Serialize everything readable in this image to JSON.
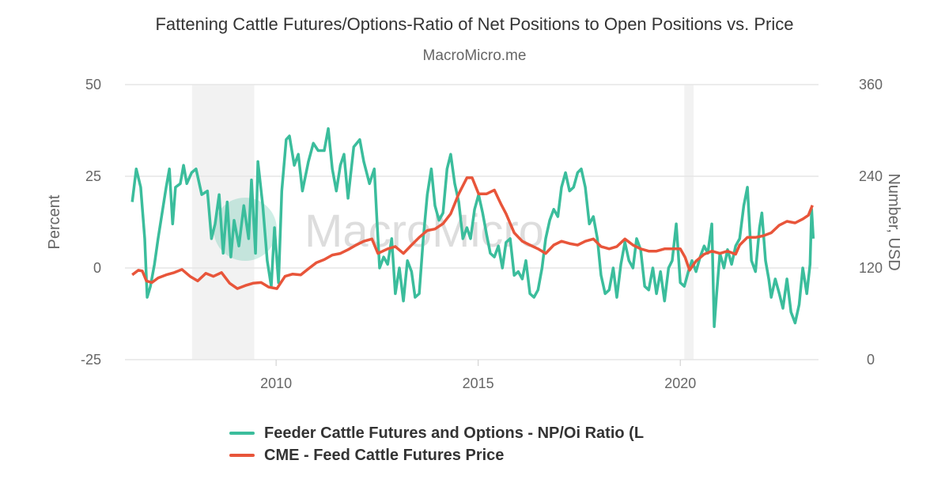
{
  "title": "Fattening Cattle Futures/Options-Ratio of Net Positions to Open Positions vs. Price",
  "subtitle": "MacroMicro.me",
  "watermark": "MacroMicro",
  "chart_data": {
    "type": "line",
    "title": "Fattening Cattle Futures/Options-Ratio of Net Positions to Open Positions vs. Price",
    "subtitle": "MacroMicro.me",
    "xlim": [
      2006.26,
      2023.42
    ],
    "x_ticks": [
      "2010",
      "2015",
      "2020"
    ],
    "x_tick_values": [
      2010,
      2015,
      2020
    ],
    "y_left": {
      "label": "Percent",
      "lim": [
        -25,
        50
      ],
      "ticks": [
        "-25",
        "0",
        "25",
        "50"
      ],
      "tick_values": [
        -25,
        0,
        25,
        50
      ]
    },
    "y_right": {
      "label": "Number, USD",
      "lim": [
        0,
        360
      ],
      "ticks": [
        "0",
        "120",
        "240",
        "360"
      ],
      "tick_values": [
        0,
        120,
        240,
        360
      ]
    },
    "grid": true,
    "legend_position": "bottom",
    "shaded_periods": [
      [
        2007.92,
        2009.46
      ],
      [
        2020.1,
        2020.33
      ]
    ],
    "series": [
      {
        "name": "Feeder Cattle Futures and Options - NP/Oi Ratio (L",
        "axis": "left",
        "color": "#3bbd9c",
        "points": [
          [
            2006.44,
            18
          ],
          [
            2006.54,
            27
          ],
          [
            2006.65,
            22
          ],
          [
            2006.75,
            8
          ],
          [
            2006.81,
            -8
          ],
          [
            2006.89,
            -5
          ],
          [
            2006.99,
            1
          ],
          [
            2007.08,
            8
          ],
          [
            2007.18,
            15
          ],
          [
            2007.28,
            22
          ],
          [
            2007.36,
            27
          ],
          [
            2007.44,
            12
          ],
          [
            2007.51,
            22
          ],
          [
            2007.63,
            23
          ],
          [
            2007.71,
            28
          ],
          [
            2007.79,
            23
          ],
          [
            2007.91,
            26
          ],
          [
            2008.02,
            27
          ],
          [
            2008.16,
            20
          ],
          [
            2008.3,
            21
          ],
          [
            2008.4,
            8
          ],
          [
            2008.49,
            12
          ],
          [
            2008.59,
            20
          ],
          [
            2008.69,
            4
          ],
          [
            2008.79,
            18
          ],
          [
            2008.88,
            3
          ],
          [
            2008.96,
            13
          ],
          [
            2009.08,
            6
          ],
          [
            2009.2,
            17
          ],
          [
            2009.32,
            8
          ],
          [
            2009.39,
            24
          ],
          [
            2009.49,
            4
          ],
          [
            2009.55,
            29
          ],
          [
            2009.67,
            17
          ],
          [
            2009.78,
            2
          ],
          [
            2009.88,
            -5
          ],
          [
            2009.96,
            11
          ],
          [
            2010.06,
            -4
          ],
          [
            2010.14,
            21
          ],
          [
            2010.25,
            35
          ],
          [
            2010.33,
            36
          ],
          [
            2010.45,
            28
          ],
          [
            2010.55,
            31
          ],
          [
            2010.65,
            21
          ],
          [
            2010.8,
            29
          ],
          [
            2010.92,
            34
          ],
          [
            2011.04,
            32
          ],
          [
            2011.19,
            32
          ],
          [
            2011.29,
            38
          ],
          [
            2011.39,
            27
          ],
          [
            2011.49,
            21
          ],
          [
            2011.59,
            28
          ],
          [
            2011.68,
            31
          ],
          [
            2011.78,
            19
          ],
          [
            2011.92,
            33
          ],
          [
            2012.07,
            35
          ],
          [
            2012.17,
            29
          ],
          [
            2012.31,
            23
          ],
          [
            2012.43,
            27
          ],
          [
            2012.49,
            14
          ],
          [
            2012.56,
            0
          ],
          [
            2012.66,
            3
          ],
          [
            2012.76,
            1
          ],
          [
            2012.86,
            8
          ],
          [
            2012.95,
            -7
          ],
          [
            2013.05,
            0
          ],
          [
            2013.15,
            -9
          ],
          [
            2013.25,
            2
          ],
          [
            2013.35,
            -1
          ],
          [
            2013.44,
            -8
          ],
          [
            2013.54,
            -7
          ],
          [
            2013.64,
            8
          ],
          [
            2013.74,
            20
          ],
          [
            2013.84,
            27
          ],
          [
            2013.93,
            17
          ],
          [
            2014.03,
            13
          ],
          [
            2014.13,
            15
          ],
          [
            2014.23,
            27
          ],
          [
            2014.32,
            31
          ],
          [
            2014.42,
            23
          ],
          [
            2014.52,
            18
          ],
          [
            2014.62,
            8
          ],
          [
            2014.72,
            11
          ],
          [
            2014.81,
            8
          ],
          [
            2014.91,
            16
          ],
          [
            2015.01,
            20
          ],
          [
            2015.11,
            15
          ],
          [
            2015.21,
            9
          ],
          [
            2015.3,
            4
          ],
          [
            2015.4,
            3
          ],
          [
            2015.5,
            6
          ],
          [
            2015.6,
            0
          ],
          [
            2015.69,
            7
          ],
          [
            2015.79,
            8
          ],
          [
            2015.89,
            -2
          ],
          [
            2015.99,
            -1
          ],
          [
            2016.09,
            -3
          ],
          [
            2016.18,
            2
          ],
          [
            2016.28,
            -7
          ],
          [
            2016.38,
            -8
          ],
          [
            2016.48,
            -6
          ],
          [
            2016.58,
            0
          ],
          [
            2016.67,
            8
          ],
          [
            2016.77,
            13
          ],
          [
            2016.87,
            16
          ],
          [
            2016.97,
            14
          ],
          [
            2017.06,
            22
          ],
          [
            2017.16,
            26
          ],
          [
            2017.26,
            21
          ],
          [
            2017.36,
            22
          ],
          [
            2017.46,
            26
          ],
          [
            2017.55,
            27
          ],
          [
            2017.65,
            22
          ],
          [
            2017.75,
            12
          ],
          [
            2017.85,
            14
          ],
          [
            2017.95,
            8
          ],
          [
            2018.04,
            -2
          ],
          [
            2018.14,
            -7
          ],
          [
            2018.24,
            -6
          ],
          [
            2018.34,
            0
          ],
          [
            2018.43,
            -8
          ],
          [
            2018.53,
            1
          ],
          [
            2018.63,
            7
          ],
          [
            2018.73,
            2
          ],
          [
            2018.83,
            0
          ],
          [
            2018.92,
            8
          ],
          [
            2019.02,
            5
          ],
          [
            2019.12,
            -5
          ],
          [
            2019.22,
            -6
          ],
          [
            2019.32,
            0
          ],
          [
            2019.41,
            -7
          ],
          [
            2019.51,
            -1
          ],
          [
            2019.61,
            -9
          ],
          [
            2019.71,
            0
          ],
          [
            2019.8,
            2
          ],
          [
            2019.9,
            12
          ],
          [
            2020.0,
            -4
          ],
          [
            2020.1,
            -5
          ],
          [
            2020.2,
            -1
          ],
          [
            2020.29,
            2
          ],
          [
            2020.39,
            -1
          ],
          [
            2020.49,
            3
          ],
          [
            2020.59,
            6
          ],
          [
            2020.68,
            4
          ],
          [
            2020.78,
            12
          ],
          [
            2020.84,
            -16
          ],
          [
            2020.9,
            -7
          ],
          [
            2020.98,
            4
          ],
          [
            2021.08,
            0
          ],
          [
            2021.17,
            5
          ],
          [
            2021.27,
            1
          ],
          [
            2021.37,
            6
          ],
          [
            2021.47,
            8
          ],
          [
            2021.57,
            17
          ],
          [
            2021.66,
            22
          ],
          [
            2021.76,
            2
          ],
          [
            2021.86,
            -1
          ],
          [
            2021.96,
            11
          ],
          [
            2022.02,
            15
          ],
          [
            2022.11,
            2
          ],
          [
            2022.19,
            -3
          ],
          [
            2022.25,
            -8
          ],
          [
            2022.35,
            -3
          ],
          [
            2022.45,
            -7
          ],
          [
            2022.54,
            -11
          ],
          [
            2022.64,
            -3
          ],
          [
            2022.74,
            -12
          ],
          [
            2022.84,
            -15
          ],
          [
            2022.94,
            -10
          ],
          [
            2023.03,
            0
          ],
          [
            2023.13,
            -7
          ],
          [
            2023.21,
            1
          ],
          [
            2023.25,
            16
          ],
          [
            2023.29,
            8
          ]
        ]
      },
      {
        "name": "CME - Feed Cattle Futures Price",
        "axis": "right",
        "color": "#e8553a",
        "points": [
          [
            2006.44,
            111
          ],
          [
            2006.59,
            117
          ],
          [
            2006.69,
            116
          ],
          [
            2006.79,
            103
          ],
          [
            2006.93,
            101
          ],
          [
            2007.08,
            107
          ],
          [
            2007.28,
            111
          ],
          [
            2007.48,
            114
          ],
          [
            2007.67,
            118
          ],
          [
            2007.87,
            109
          ],
          [
            2008.06,
            103
          ],
          [
            2008.26,
            113
          ],
          [
            2008.45,
            109
          ],
          [
            2008.65,
            114
          ],
          [
            2008.85,
            100
          ],
          [
            2009.04,
            93
          ],
          [
            2009.24,
            97
          ],
          [
            2009.43,
            100
          ],
          [
            2009.63,
            101
          ],
          [
            2009.82,
            95
          ],
          [
            2010.02,
            93
          ],
          [
            2010.22,
            109
          ],
          [
            2010.41,
            112
          ],
          [
            2010.61,
            111
          ],
          [
            2010.8,
            119
          ],
          [
            2011.0,
            127
          ],
          [
            2011.19,
            131
          ],
          [
            2011.39,
            137
          ],
          [
            2011.59,
            139
          ],
          [
            2011.78,
            144
          ],
          [
            2011.98,
            150
          ],
          [
            2012.17,
            155
          ],
          [
            2012.37,
            158
          ],
          [
            2012.52,
            139
          ],
          [
            2012.76,
            145
          ],
          [
            2012.95,
            148
          ],
          [
            2013.15,
            139
          ],
          [
            2013.35,
            150
          ],
          [
            2013.54,
            160
          ],
          [
            2013.74,
            169
          ],
          [
            2013.93,
            171
          ],
          [
            2014.13,
            178
          ],
          [
            2014.32,
            191
          ],
          [
            2014.52,
            217
          ],
          [
            2014.72,
            238
          ],
          [
            2014.85,
            238
          ],
          [
            2015.01,
            217
          ],
          [
            2015.21,
            217
          ],
          [
            2015.4,
            222
          ],
          [
            2015.56,
            204
          ],
          [
            2015.69,
            191
          ],
          [
            2015.89,
            166
          ],
          [
            2016.09,
            155
          ],
          [
            2016.28,
            150
          ],
          [
            2016.48,
            145
          ],
          [
            2016.67,
            139
          ],
          [
            2016.87,
            150
          ],
          [
            2017.06,
            155
          ],
          [
            2017.26,
            152
          ],
          [
            2017.46,
            150
          ],
          [
            2017.65,
            155
          ],
          [
            2017.85,
            158
          ],
          [
            2018.04,
            148
          ],
          [
            2018.24,
            145
          ],
          [
            2018.43,
            148
          ],
          [
            2018.63,
            158
          ],
          [
            2018.83,
            150
          ],
          [
            2019.02,
            145
          ],
          [
            2019.22,
            142
          ],
          [
            2019.41,
            142
          ],
          [
            2019.61,
            145
          ],
          [
            2019.8,
            145
          ],
          [
            2020.0,
            145
          ],
          [
            2020.12,
            134
          ],
          [
            2020.23,
            117
          ],
          [
            2020.39,
            129
          ],
          [
            2020.59,
            138
          ],
          [
            2020.78,
            142
          ],
          [
            2020.98,
            139
          ],
          [
            2021.17,
            142
          ],
          [
            2021.37,
            138
          ],
          [
            2021.47,
            150
          ],
          [
            2021.66,
            160
          ],
          [
            2021.86,
            160
          ],
          [
            2022.05,
            162
          ],
          [
            2022.25,
            166
          ],
          [
            2022.45,
            176
          ],
          [
            2022.64,
            181
          ],
          [
            2022.84,
            179
          ],
          [
            2023.03,
            184
          ],
          [
            2023.17,
            189
          ],
          [
            2023.27,
            202
          ]
        ]
      }
    ]
  }
}
